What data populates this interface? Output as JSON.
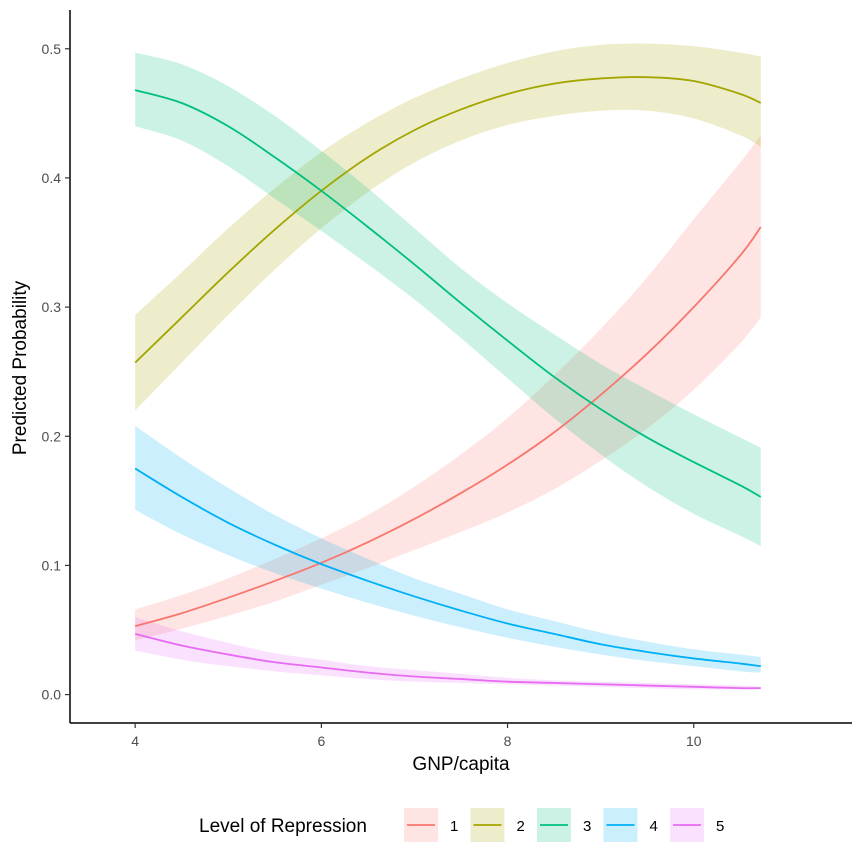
{
  "chart_data": {
    "type": "line",
    "title": "",
    "xlabel": "GNP/capita",
    "ylabel": "Predicted Probability",
    "xlim": [
      3.3,
      11.7
    ],
    "ylim": [
      -0.022,
      0.53
    ],
    "x_ticks": [
      4,
      6,
      8,
      10
    ],
    "x_tick_labels": [
      "4",
      "6",
      "8",
      "10"
    ],
    "y_ticks": [
      0.0,
      0.1,
      0.2,
      0.3,
      0.4,
      0.5
    ],
    "y_tick_labels": [
      "0.0",
      "0.1",
      "0.2",
      "0.3",
      "0.4",
      "0.5"
    ],
    "grid": false,
    "legend": {
      "title": "Level of Repression",
      "position": "bottom"
    },
    "x": [
      4,
      4.5,
      5,
      5.5,
      6,
      6.5,
      7,
      7.5,
      8,
      8.5,
      9,
      9.5,
      10,
      10.5,
      10.72
    ],
    "series": [
      {
        "name": "1",
        "color": "#F8766D",
        "values": [
          0.053,
          0.063,
          0.075,
          0.088,
          0.102,
          0.118,
          0.136,
          0.156,
          0.178,
          0.203,
          0.232,
          0.264,
          0.3,
          0.34,
          0.362
        ],
        "lower": [
          0.042,
          0.051,
          0.061,
          0.072,
          0.085,
          0.098,
          0.112,
          0.126,
          0.141,
          0.159,
          0.181,
          0.206,
          0.236,
          0.272,
          0.292
        ],
        "upper": [
          0.066,
          0.077,
          0.09,
          0.105,
          0.121,
          0.139,
          0.161,
          0.186,
          0.214,
          0.247,
          0.283,
          0.323,
          0.368,
          0.412,
          0.433
        ]
      },
      {
        "name": "2",
        "color": "#A3A500",
        "values": [
          0.257,
          0.292,
          0.327,
          0.36,
          0.39,
          0.416,
          0.437,
          0.453,
          0.465,
          0.473,
          0.477,
          0.478,
          0.475,
          0.465,
          0.458
        ],
        "lower": [
          0.22,
          0.257,
          0.294,
          0.329,
          0.361,
          0.389,
          0.412,
          0.429,
          0.441,
          0.448,
          0.452,
          0.452,
          0.446,
          0.433,
          0.424
        ],
        "upper": [
          0.294,
          0.327,
          0.361,
          0.392,
          0.42,
          0.443,
          0.462,
          0.477,
          0.489,
          0.498,
          0.503,
          0.504,
          0.502,
          0.497,
          0.494
        ]
      },
      {
        "name": "3",
        "color": "#00BF7D",
        "values": [
          0.468,
          0.458,
          0.44,
          0.416,
          0.39,
          0.362,
          0.333,
          0.303,
          0.274,
          0.246,
          0.221,
          0.199,
          0.18,
          0.162,
          0.153
        ],
        "lower": [
          0.44,
          0.429,
          0.409,
          0.384,
          0.359,
          0.333,
          0.306,
          0.276,
          0.245,
          0.214,
          0.186,
          0.161,
          0.14,
          0.123,
          0.115
        ],
        "upper": [
          0.497,
          0.488,
          0.471,
          0.448,
          0.421,
          0.392,
          0.361,
          0.33,
          0.303,
          0.279,
          0.256,
          0.236,
          0.217,
          0.199,
          0.191
        ]
      },
      {
        "name": "4",
        "color": "#00B0F6",
        "values": [
          0.175,
          0.153,
          0.133,
          0.116,
          0.101,
          0.088,
          0.076,
          0.065,
          0.055,
          0.047,
          0.039,
          0.033,
          0.028,
          0.024,
          0.022
        ],
        "lower": [
          0.143,
          0.124,
          0.108,
          0.094,
          0.082,
          0.071,
          0.061,
          0.052,
          0.044,
          0.037,
          0.031,
          0.026,
          0.022,
          0.018,
          0.017
        ],
        "upper": [
          0.208,
          0.183,
          0.16,
          0.139,
          0.121,
          0.105,
          0.09,
          0.078,
          0.066,
          0.057,
          0.048,
          0.041,
          0.035,
          0.031,
          0.029
        ]
      },
      {
        "name": "5",
        "color": "#E76BF3",
        "values": [
          0.047,
          0.038,
          0.031,
          0.025,
          0.021,
          0.017,
          0.014,
          0.012,
          0.01,
          0.009,
          0.008,
          0.007,
          0.006,
          0.005,
          0.005
        ],
        "lower": [
          0.034,
          0.027,
          0.022,
          0.018,
          0.015,
          0.012,
          0.01,
          0.009,
          0.008,
          0.007,
          0.006,
          0.005,
          0.004,
          0.004,
          0.004
        ],
        "upper": [
          0.06,
          0.049,
          0.04,
          0.032,
          0.027,
          0.022,
          0.019,
          0.016,
          0.013,
          0.011,
          0.01,
          0.009,
          0.008,
          0.007,
          0.006
        ]
      }
    ]
  }
}
